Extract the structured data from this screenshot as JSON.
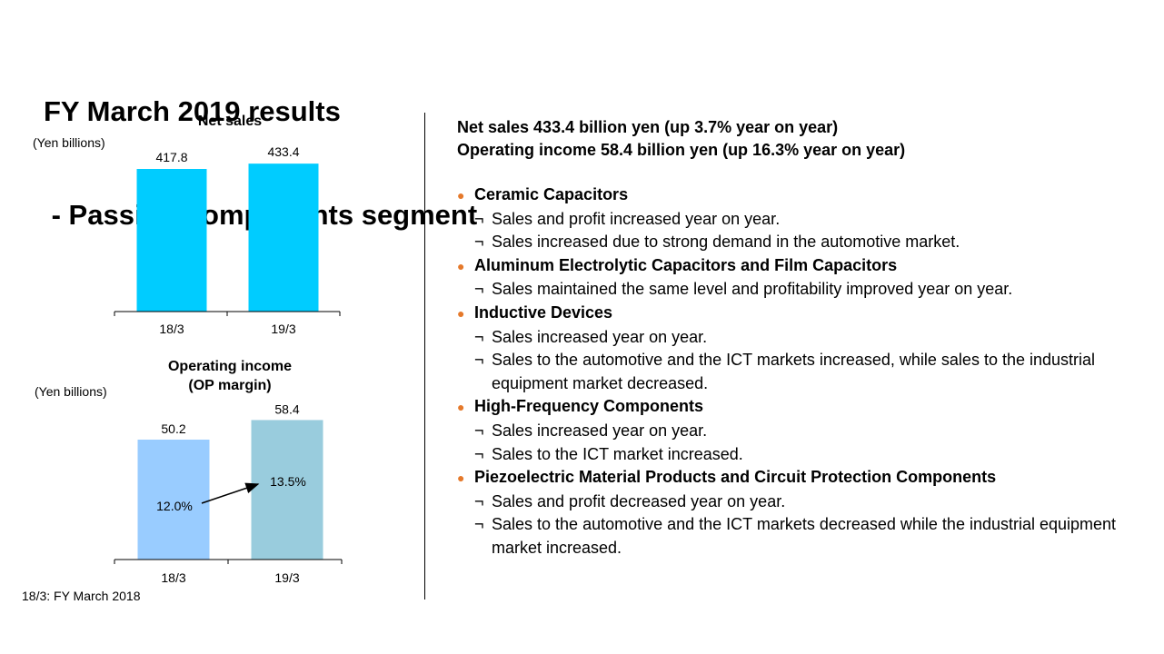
{
  "title": {
    "line1": "FY March 2019 results",
    "line2": " - Passive Components segment"
  },
  "footnote": "18/3: FY March 2018",
  "summary": {
    "net_sales": "Net sales  433.4 billion yen (up 3.7% year on year)",
    "operating_income": "Operating income 58.4 billion yen (up 16.3% year on year)"
  },
  "bullet_marker": "●",
  "point_marker": "¬",
  "sections": [
    {
      "heading": "Ceramic Capacitors",
      "points": [
        "Sales and profit increased year on year.",
        "Sales increased due to strong demand  in the automotive market."
      ]
    },
    {
      "heading": "Aluminum Electrolytic  Capacitors and Film Capacitors",
      "points": [
        "Sales maintained  the same level and profitability improved  year on year."
      ]
    },
    {
      "heading": "Inductive Devices",
      "points": [
        "Sales increased year on year.",
        "Sales to the automotive and the ICT markets increased, while sales to the industrial equipment  market decreased."
      ]
    },
    {
      "heading": "High-Frequency Components",
      "points": [
        "Sales increased year on year.",
        "Sales to the ICT market increased."
      ]
    },
    {
      "heading": "Piezoelectric Material Products and Circuit Protection Components",
      "points": [
        "Sales and profit decreased year on year.",
        "Sales to the automotive and the ICT markets decreased while the industrial equipment  market increased."
      ]
    }
  ],
  "colors": {
    "net_sales_bar": "#00ccff",
    "op_bar_18": "#99ccff",
    "op_bar_19": "#99ccdd",
    "bullet": "#e5792b"
  },
  "chart_data": [
    {
      "type": "bar",
      "title": "Net sales",
      "unit_label": "(Yen billions)",
      "categories": [
        "18/3",
        "19/3"
      ],
      "values": [
        417.8,
        433.4
      ],
      "value_labels": [
        "417.8",
        "433.4"
      ]
    },
    {
      "type": "bar",
      "title": "Operating income\n(OP margin)",
      "title_lines": [
        "Operating income",
        "(OP margin)"
      ],
      "unit_label": "(Yen billions)",
      "categories": [
        "18/3",
        "19/3"
      ],
      "values": [
        50.2,
        58.4
      ],
      "value_labels": [
        "50.2",
        "58.4"
      ],
      "op_margin_labels": [
        "12.0%",
        "13.5%"
      ],
      "op_margin": [
        12.0,
        13.5
      ]
    }
  ]
}
